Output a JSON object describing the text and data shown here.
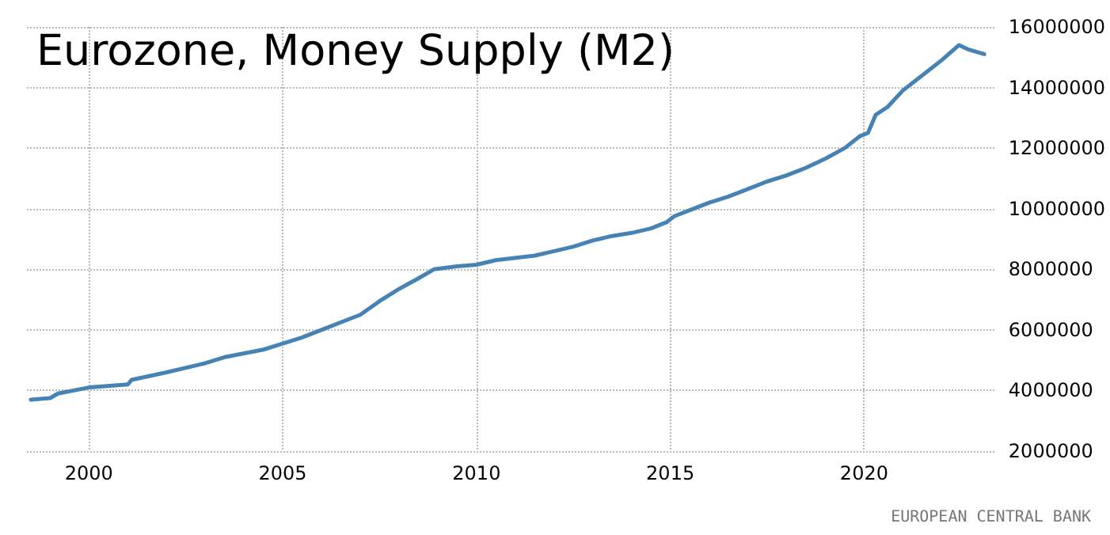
{
  "chart_data": {
    "type": "line",
    "title": "Eurozone, Money Supply (M2)",
    "annotations": [
      "EUROPEAN CENTRAL BANK"
    ],
    "x": [
      1998.5,
      1999.0,
      1999.2,
      2000,
      2001,
      2001.1,
      2002,
      2003,
      2003.5,
      2004.5,
      2005,
      2005.5,
      2006,
      2006.5,
      2007,
      2007.5,
      2008,
      2008.5,
      2008.9,
      2009.5,
      2010,
      2010.5,
      2011.5,
      2012,
      2012.5,
      2013,
      2013.5,
      2014,
      2014.5,
      2014.9,
      2015.1,
      2015.5,
      2016,
      2016.5,
      2017,
      2017.5,
      2018,
      2018.5,
      2019,
      2019.5,
      2019.9,
      2020.1,
      2020.3,
      2020.6,
      2021,
      2021.5,
      2022,
      2022.45,
      2022.7,
      2023.1
    ],
    "series": [
      {
        "color": "#4682b4",
        "values": [
          3700000,
          3750000,
          3900000,
          4100000,
          4200000,
          4350000,
          4600000,
          4900000,
          5100000,
          5350000,
          5550000,
          5750000,
          6000000,
          6250000,
          6500000,
          6950000,
          7350000,
          7700000,
          8000000,
          8100000,
          8150000,
          8300000,
          8450000,
          8600000,
          8750000,
          8950000,
          9100000,
          9200000,
          9350000,
          9550000,
          9750000,
          9950000,
          10200000,
          10400000,
          10650000,
          10900000,
          11100000,
          11350000,
          11650000,
          12000000,
          12400000,
          12500000,
          13100000,
          13350000,
          13900000,
          14400000,
          14900000,
          15400000,
          15250000,
          15100000
        ]
      }
    ],
    "xlim": [
      1998.4,
      2023.4
    ],
    "xticks": [
      2000,
      2005,
      2010,
      2015,
      2020
    ],
    "ylim": [
      2000000,
      16000000
    ],
    "yticks": [
      2000000,
      4000000,
      6000000,
      8000000,
      10000000,
      12000000,
      14000000,
      16000000
    ],
    "grid": true,
    "marker": "none",
    "line_style": "solid"
  }
}
